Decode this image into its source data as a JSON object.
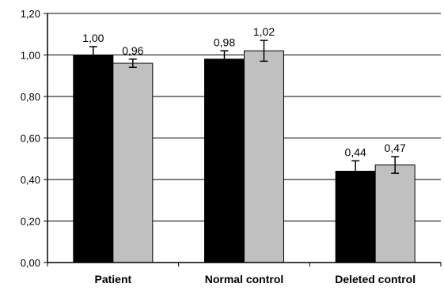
{
  "chart_data": {
    "type": "bar",
    "categories": [
      "Patient",
      "Normal control",
      "Deleted control"
    ],
    "series": [
      {
        "values": [
          1.0,
          0.98,
          0.44
        ],
        "errors": [
          0.04,
          0.04,
          0.05
        ],
        "labels": [
          "1,00",
          "0,98",
          "0,44"
        ],
        "color": "#000000"
      },
      {
        "values": [
          0.96,
          1.02,
          0.47
        ],
        "errors": [
          0.02,
          0.05,
          0.04
        ],
        "labels": [
          "0,96",
          "1,02",
          "0,47"
        ],
        "color": "#c0c0c0"
      }
    ],
    "ylim": [
      0,
      1.2
    ],
    "yticks": [
      0.0,
      0.2,
      0.4,
      0.6,
      0.8,
      1.0,
      1.2
    ],
    "ytick_labels": [
      "0,00",
      "0,20",
      "0,40",
      "0,60",
      "0,80",
      "1,00",
      "1,20"
    ],
    "grid": true,
    "title": "",
    "xlabel": "",
    "ylabel": ""
  }
}
